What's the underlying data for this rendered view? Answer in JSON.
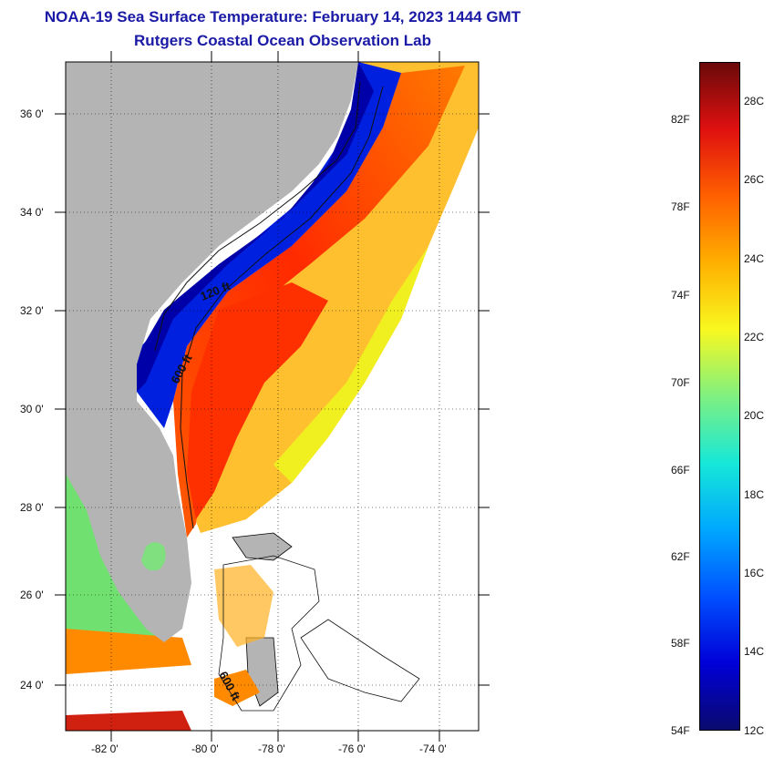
{
  "header": {
    "title": "NOAA-19 Sea Surface Temperature:  February 14, 2023 1444 GMT",
    "subtitle": "Rutgers Coastal Ocean Observation Lab"
  },
  "map": {
    "lat_labels": [
      "36 0'",
      "34 0'",
      "32 0'",
      "30 0'",
      "28 0'",
      "26 0'",
      "24 0'"
    ],
    "lon_labels": [
      "-82 0'",
      "-80 0'",
      "-78 0'",
      "-76 0'",
      "-74 0'"
    ],
    "contour_labels": [
      "120 ft",
      "600 ft",
      "600 ft"
    ],
    "colors": {
      "land": "#b4b4b4",
      "cold": "#0000c8",
      "warm": "#ff2a00",
      "warmest": "#e00000"
    }
  },
  "colorbar": {
    "fahrenheit": [
      "82F",
      "78F",
      "74F",
      "70F",
      "66F",
      "62F",
      "58F",
      "54F"
    ],
    "celsius": [
      "28C",
      "26C",
      "24C",
      "22C",
      "20C",
      "18C",
      "16C",
      "14C",
      "12C"
    ],
    "range_c": [
      12,
      29
    ],
    "range_f": [
      54,
      84
    ]
  }
}
